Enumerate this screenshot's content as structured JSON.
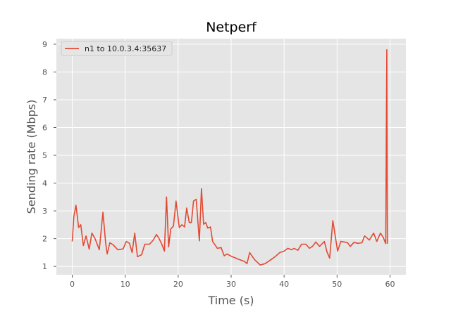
{
  "chart_data": {
    "type": "line",
    "title": "Netperf",
    "xlabel": "Time (s)",
    "ylabel": "Sending rate (Mbps)",
    "xlim": [
      -3,
      63
    ],
    "ylim": [
      0.7,
      9.2
    ],
    "xticks": [
      0,
      10,
      20,
      30,
      40,
      50,
      60
    ],
    "yticks": [
      1,
      2,
      3,
      4,
      5,
      6,
      7,
      8,
      9
    ],
    "grid": true,
    "legend_position": "top-left",
    "colors": {
      "background": "#e5e5e5",
      "grid": "#ffffff",
      "line": "#e24a33",
      "outer": "#ffffff"
    },
    "series": [
      {
        "name": "n1 to 10.0.3.4:35637",
        "x": [
          0,
          0.3,
          0.7,
          1.2,
          1.6,
          2.1,
          2.6,
          3.2,
          3.7,
          4.3,
          5.1,
          5.8,
          6.3,
          6.6,
          7.1,
          7.7,
          8.6,
          9.6,
          10.2,
          10.8,
          11.3,
          11.8,
          12.3,
          13.1,
          13.7,
          14.6,
          15.3,
          15.9,
          16.4,
          16.9,
          17.4,
          17.8,
          18.2,
          18.6,
          19.1,
          19.6,
          20.2,
          20.7,
          21.2,
          21.6,
          22.1,
          22.5,
          22.9,
          23.4,
          24.0,
          24.4,
          24.8,
          25.2,
          25.6,
          26.1,
          26.5,
          27.4,
          28.1,
          28.7,
          29.2,
          30.2,
          31.5,
          32.5,
          33.0,
          33.5,
          34.4,
          35.5,
          36.4,
          37.2,
          38.3,
          39.2,
          40.0,
          40.7,
          41.4,
          41.9,
          42.6,
          43.3,
          44.1,
          44.8,
          45.4,
          46.0,
          46.7,
          47.6,
          48.1,
          48.6,
          49.2,
          50.1,
          50.7,
          51.4,
          52.0,
          52.5,
          53.2,
          53.9,
          54.7,
          55.2,
          56.1,
          56.9,
          57.5,
          58.2,
          58.7,
          59.2,
          59.4,
          59.5
        ],
        "y": [
          1.9,
          2.8,
          3.2,
          2.4,
          2.5,
          1.75,
          2.1,
          1.62,
          2.2,
          2.0,
          1.6,
          2.95,
          1.85,
          1.45,
          1.85,
          1.78,
          1.6,
          1.63,
          1.9,
          1.83,
          1.5,
          2.2,
          1.35,
          1.42,
          1.8,
          1.8,
          1.95,
          2.15,
          2.0,
          1.8,
          1.55,
          3.5,
          1.7,
          2.35,
          2.45,
          3.35,
          2.4,
          2.5,
          2.42,
          3.1,
          2.58,
          2.58,
          3.35,
          3.42,
          1.92,
          3.8,
          2.52,
          2.58,
          2.38,
          2.42,
          1.9,
          1.65,
          1.68,
          1.38,
          1.45,
          1.35,
          1.25,
          1.18,
          1.1,
          1.5,
          1.25,
          1.05,
          1.1,
          1.2,
          1.35,
          1.5,
          1.55,
          1.65,
          1.6,
          1.65,
          1.58,
          1.8,
          1.8,
          1.65,
          1.73,
          1.88,
          1.72,
          1.9,
          1.52,
          1.3,
          2.65,
          1.55,
          1.9,
          1.88,
          1.85,
          1.72,
          1.87,
          1.83,
          1.85,
          2.1,
          1.95,
          2.2,
          1.9,
          2.2,
          2.05,
          1.82,
          8.8,
          1.82
        ]
      }
    ]
  }
}
